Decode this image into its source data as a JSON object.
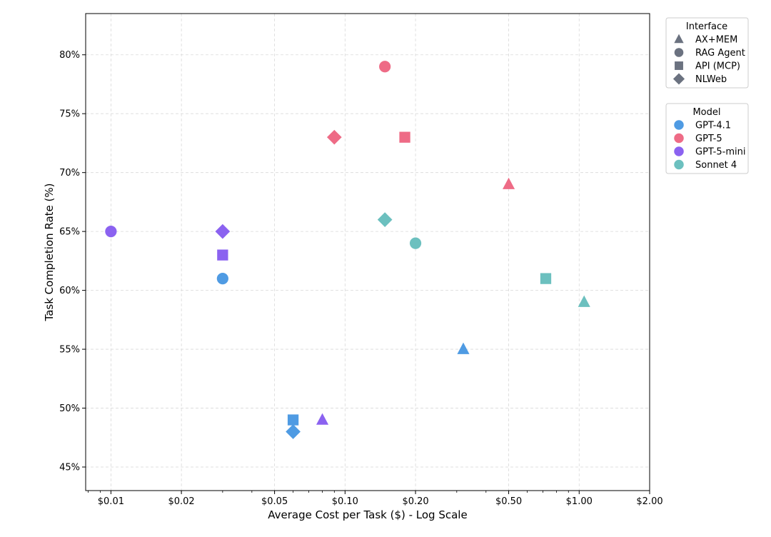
{
  "chart_data": {
    "type": "scatter",
    "xscale": "log",
    "xlabel": "Average Cost per Task ($) - Log Scale",
    "ylabel": "Task Completion Rate (%)",
    "xlim": [
      0.0078,
      2.0
    ],
    "ylim": [
      43,
      83.5
    ],
    "grid": true,
    "x_ticks": [
      {
        "value": 0.01,
        "label": "$0.01"
      },
      {
        "value": 0.02,
        "label": "$0.02"
      },
      {
        "value": 0.05,
        "label": "$0.05"
      },
      {
        "value": 0.1,
        "label": "$0.10"
      },
      {
        "value": 0.2,
        "label": "$0.20"
      },
      {
        "value": 0.5,
        "label": "$0.50"
      },
      {
        "value": 1.0,
        "label": "$1.00"
      },
      {
        "value": 2.0,
        "label": "$2.00"
      }
    ],
    "y_ticks": [
      {
        "value": 45,
        "label": "45%"
      },
      {
        "value": 50,
        "label": "50%"
      },
      {
        "value": 55,
        "label": "55%"
      },
      {
        "value": 60,
        "label": "60%"
      },
      {
        "value": 65,
        "label": "65%"
      },
      {
        "value": 70,
        "label": "70%"
      },
      {
        "value": 75,
        "label": "75%"
      },
      {
        "value": 80,
        "label": "80%"
      }
    ],
    "interfaces": [
      {
        "key": "ax_mem",
        "label": "AX+MEM",
        "marker": "triangle"
      },
      {
        "key": "rag_agent",
        "label": "RAG Agent",
        "marker": "circle"
      },
      {
        "key": "api_mcp",
        "label": "API (MCP)",
        "marker": "square"
      },
      {
        "key": "nlweb",
        "label": "NLWeb",
        "marker": "diamond"
      }
    ],
    "models": [
      {
        "key": "gpt41",
        "label": "GPT-4.1",
        "color": "#4f9be3"
      },
      {
        "key": "gpt5",
        "label": "GPT-5",
        "color": "#ee6b86"
      },
      {
        "key": "gpt5mini",
        "label": "GPT-5-mini",
        "color": "#8b62f0"
      },
      {
        "key": "sonnet4",
        "label": "Sonnet 4",
        "color": "#6cc0bf"
      }
    ],
    "legend_interface_title": "Interface",
    "legend_model_title": "Model",
    "legend_marker_color": "#6b7280",
    "legend_position": "outside right, top",
    "points": [
      {
        "model": "gpt5",
        "interface": "rag_agent",
        "x": 0.148,
        "y": 79
      },
      {
        "model": "gpt5",
        "interface": "nlweb",
        "x": 0.09,
        "y": 73
      },
      {
        "model": "gpt5",
        "interface": "api_mcp",
        "x": 0.18,
        "y": 73
      },
      {
        "model": "gpt5",
        "interface": "ax_mem",
        "x": 0.5,
        "y": 69
      },
      {
        "model": "gpt5mini",
        "interface": "rag_agent",
        "x": 0.01,
        "y": 65
      },
      {
        "model": "gpt5mini",
        "interface": "nlweb",
        "x": 0.03,
        "y": 65
      },
      {
        "model": "gpt5mini",
        "interface": "api_mcp",
        "x": 0.03,
        "y": 63
      },
      {
        "model": "gpt5mini",
        "interface": "ax_mem",
        "x": 0.08,
        "y": 49
      },
      {
        "model": "sonnet4",
        "interface": "nlweb",
        "x": 0.148,
        "y": 66
      },
      {
        "model": "sonnet4",
        "interface": "rag_agent",
        "x": 0.2,
        "y": 64
      },
      {
        "model": "sonnet4",
        "interface": "api_mcp",
        "x": 0.72,
        "y": 61
      },
      {
        "model": "sonnet4",
        "interface": "ax_mem",
        "x": 1.05,
        "y": 59
      },
      {
        "model": "gpt41",
        "interface": "rag_agent",
        "x": 0.03,
        "y": 61
      },
      {
        "model": "gpt41",
        "interface": "ax_mem",
        "x": 0.32,
        "y": 55
      },
      {
        "model": "gpt41",
        "interface": "api_mcp",
        "x": 0.06,
        "y": 49
      },
      {
        "model": "gpt41",
        "interface": "nlweb",
        "x": 0.06,
        "y": 48
      }
    ]
  }
}
